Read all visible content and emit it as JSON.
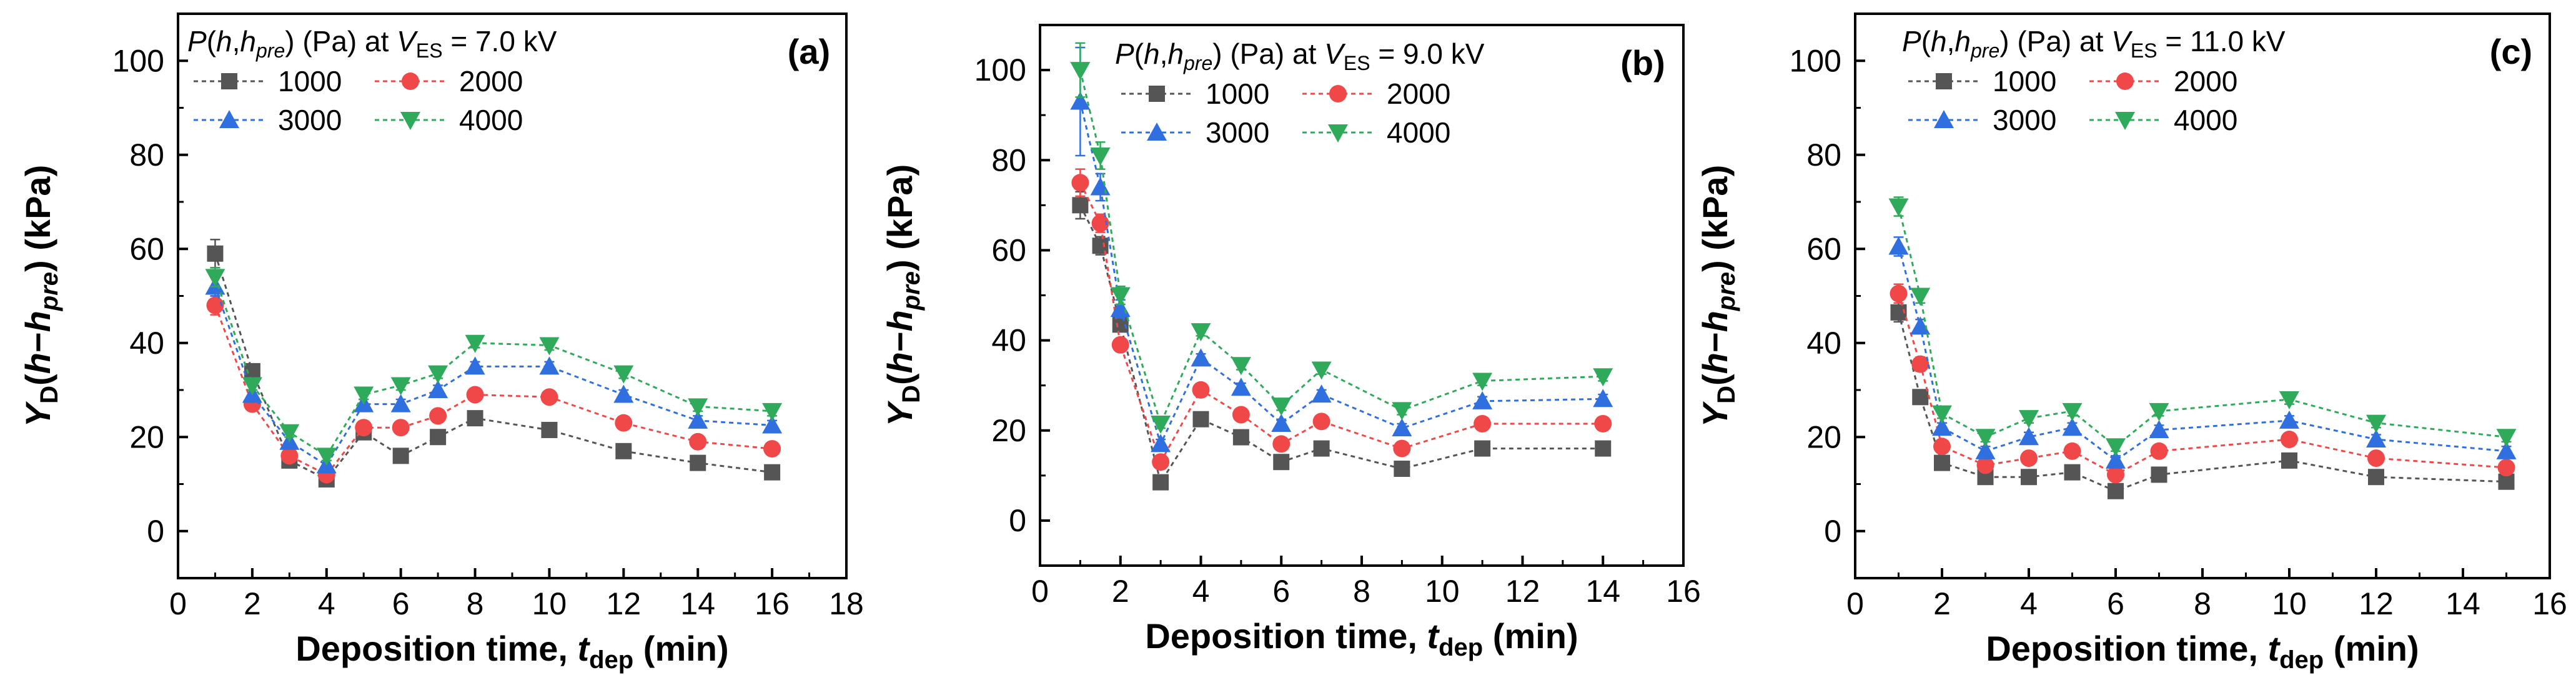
{
  "colors": {
    "1000": "#555555",
    "2000": "#f04848",
    "3000": "#2f6fe0",
    "4000": "#2faa5a"
  },
  "chart_data": [
    {
      "type": "line",
      "panel_label": "(a)",
      "legend_title": {
        "prefix": "(Pa) at ",
        "voltage": "= 7.0 kV"
      },
      "legend_position": "top-left",
      "xlabel": {
        "main": "Deposition time, ",
        "unit": "(min)"
      },
      "ylabel": {
        "unit": "(kPa)"
      },
      "xlim": [
        0,
        18
      ],
      "ylim": [
        -10,
        110
      ],
      "xticks": [
        0,
        2,
        4,
        6,
        8,
        10,
        12,
        14,
        16,
        18
      ],
      "yticks": [
        0,
        20,
        40,
        60,
        80,
        100
      ],
      "x": [
        1,
        2,
        3,
        4,
        5,
        6,
        7,
        8,
        10,
        12,
        14,
        16
      ],
      "series": [
        {
          "name": "1000",
          "marker": "square",
          "values": [
            59,
            34,
            15,
            11,
            21,
            16,
            20,
            24,
            21.5,
            17,
            14.5,
            12.5
          ],
          "errors": [
            3,
            1.5,
            1,
            1,
            1,
            1,
            1,
            1,
            1,
            1,
            1,
            1
          ]
        },
        {
          "name": "2000",
          "marker": "circle",
          "values": [
            48,
            27,
            16,
            12,
            22,
            22,
            24.5,
            29,
            28.5,
            23,
            19,
            17.5
          ],
          "errors": [
            2,
            1,
            1,
            1,
            1,
            1,
            1,
            1,
            1,
            1,
            1,
            1
          ]
        },
        {
          "name": "3000",
          "marker": "triangle-up",
          "values": [
            52,
            29,
            19,
            14,
            27,
            27,
            30,
            35,
            35,
            29,
            23.5,
            22.5
          ],
          "errors": [
            2,
            1,
            1,
            1,
            1,
            1,
            1,
            1,
            1,
            1,
            1,
            1
          ]
        },
        {
          "name": "4000",
          "marker": "triangle-down",
          "values": [
            54,
            31,
            21,
            16,
            29,
            31,
            33.5,
            40,
            39.5,
            33.5,
            26.5,
            25.5
          ],
          "errors": [
            2,
            1,
            1,
            1,
            1,
            1,
            1,
            1,
            1,
            1,
            1,
            1
          ]
        }
      ]
    },
    {
      "type": "line",
      "panel_label": "(b)",
      "legend_title": {
        "prefix": "(Pa) at ",
        "voltage": "= 9.0 kV"
      },
      "legend_position": "top-right",
      "xlabel": {
        "main": "Deposition time, ",
        "unit": "(min)"
      },
      "ylabel": {
        "unit": "(kPa)"
      },
      "xlim": [
        0,
        16
      ],
      "ylim": [
        -10,
        110
      ],
      "xticks": [
        0,
        2,
        4,
        6,
        8,
        10,
        12,
        14,
        16
      ],
      "yticks": [
        0,
        20,
        40,
        60,
        80,
        100
      ],
      "x": [
        1,
        1.5,
        2,
        3,
        4,
        5,
        6,
        7,
        9,
        11,
        14
      ],
      "series": [
        {
          "name": "1000",
          "marker": "square",
          "values": [
            70,
            61,
            43.5,
            8.5,
            22.5,
            18.5,
            13,
            16,
            11.5,
            16,
            16
          ],
          "errors": [
            3,
            2,
            1.5,
            1,
            1,
            1,
            1,
            1,
            1,
            1,
            1
          ]
        },
        {
          "name": "2000",
          "marker": "circle",
          "values": [
            75,
            66,
            39,
            13,
            29,
            23.5,
            17,
            22,
            16,
            21.5,
            21.5
          ],
          "errors": [
            3,
            2,
            1.5,
            1,
            1,
            1,
            1,
            1,
            1,
            1,
            1
          ]
        },
        {
          "name": "3000",
          "marker": "triangle-up",
          "values": [
            93,
            74,
            47,
            17,
            36,
            29.5,
            21.5,
            28,
            20.5,
            26.5,
            27
          ],
          "errors": [
            12,
            3,
            2,
            1,
            1,
            1,
            1,
            1,
            1,
            1,
            1
          ]
        },
        {
          "name": "4000",
          "marker": "triangle-down",
          "values": [
            100,
            81,
            50,
            21.5,
            42,
            34.5,
            25.5,
            33.5,
            24.5,
            31,
            32
          ],
          "errors": [
            6,
            3,
            2,
            1,
            1,
            1,
            1,
            1,
            1,
            1,
            1
          ]
        }
      ]
    },
    {
      "type": "line",
      "panel_label": "(c)",
      "legend_title": {
        "prefix": "(Pa) at ",
        "voltage": "= 11.0 kV"
      },
      "legend_position": "top-left",
      "xlabel": {
        "main": "Deposition time, ",
        "unit": "(min)"
      },
      "ylabel": {
        "unit": "(kPa)"
      },
      "xlim": [
        0,
        16
      ],
      "ylim": [
        -10,
        110
      ],
      "xticks": [
        0,
        2,
        4,
        6,
        8,
        10,
        12,
        14,
        16
      ],
      "yticks": [
        0,
        20,
        40,
        60,
        80,
        100
      ],
      "x": [
        1,
        1.5,
        2,
        3,
        4,
        5,
        6,
        7,
        10,
        12,
        15
      ],
      "series": [
        {
          "name": "1000",
          "marker": "square",
          "values": [
            46.5,
            28.5,
            14.5,
            11.5,
            11.5,
            12.5,
            8.5,
            12,
            15,
            11.5,
            10.5
          ],
          "errors": [
            2,
            1.5,
            1,
            1,
            1,
            1,
            1,
            1,
            1,
            1,
            1
          ]
        },
        {
          "name": "2000",
          "marker": "circle",
          "values": [
            50.5,
            35.5,
            18,
            14,
            15.5,
            17,
            12,
            17,
            19.5,
            15.5,
            13.5
          ],
          "errors": [
            2,
            1.5,
            1,
            1,
            1,
            1,
            1,
            1,
            1,
            1,
            1
          ]
        },
        {
          "name": "3000",
          "marker": "triangle-up",
          "values": [
            60.5,
            43.5,
            22,
            17,
            20,
            22,
            15,
            21.5,
            23.5,
            19.5,
            17
          ],
          "errors": [
            2,
            1.5,
            1,
            1,
            1,
            1,
            1,
            1,
            1,
            1,
            1
          ]
        },
        {
          "name": "4000",
          "marker": "triangle-down",
          "values": [
            69,
            50,
            25,
            20,
            24,
            25.5,
            18,
            25.5,
            28,
            23,
            20
          ],
          "errors": [
            2,
            1.5,
            1,
            1,
            1,
            1,
            1,
            1,
            1,
            1,
            1
          ]
        }
      ]
    }
  ]
}
